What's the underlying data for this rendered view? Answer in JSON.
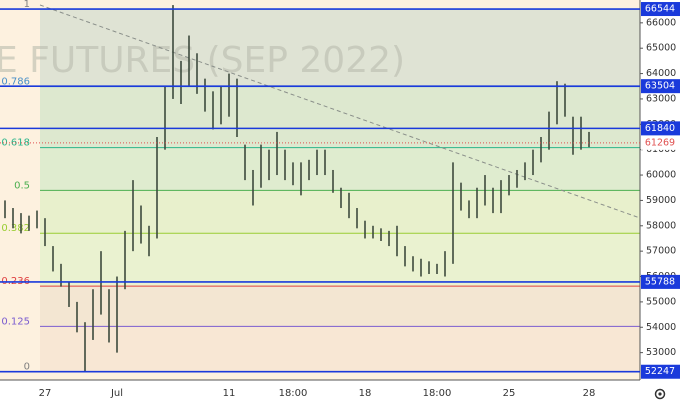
{
  "chart_data": {
    "type": "ohlc",
    "watermark": "E FUTURES (SEP 2022)",
    "categories": [
      null,
      null,
      null,
      null,
      null,
      "27",
      null,
      null,
      null,
      null,
      null,
      null,
      null,
      null,
      "Jul",
      null,
      null,
      null,
      null,
      null,
      null,
      null,
      null,
      null,
      null,
      null,
      null,
      null,
      "11",
      null,
      null,
      null,
      null,
      null,
      null,
      null,
      "18:00",
      null,
      null,
      null,
      null,
      null,
      null,
      null,
      null,
      "18",
      null,
      null,
      null,
      null,
      null,
      null,
      null,
      null,
      "18:00",
      null,
      null,
      null,
      null,
      null,
      null,
      null,
      null,
      "25",
      null,
      null,
      null,
      null,
      null,
      null,
      null,
      null,
      null,
      "28"
    ],
    "series": [
      {
        "color": "#3d4a3d",
        "high": [
          59000,
          58700,
          58500,
          58400,
          58600,
          58300,
          57200,
          56500,
          55800,
          55000,
          54200,
          55500,
          57000,
          55500,
          56000,
          57800,
          59800,
          58800,
          58000,
          61500,
          63500,
          66700,
          64500,
          65500,
          64800,
          63800,
          63300,
          63500,
          64000,
          63800,
          61200,
          60200,
          61200,
          61000,
          61700,
          61000,
          60500,
          60500,
          60600,
          61000,
          61000,
          60200,
          59500,
          59300,
          58700,
          58200,
          58000,
          57900,
          57800,
          58000,
          57200,
          56800,
          56700,
          56600,
          56500,
          57000,
          60500,
          59700,
          59000,
          59500,
          60000,
          59500,
          59800,
          60000,
          60200,
          60500,
          61000,
          61500,
          62500,
          63700,
          63600,
          62300,
          62300,
          61700
        ],
        "low": [
          58300,
          57900,
          57700,
          57800,
          57900,
          57200,
          56200,
          55600,
          54800,
          53800,
          52250,
          53500,
          54500,
          53400,
          53000,
          55500,
          57000,
          57300,
          56800,
          57500,
          61000,
          63000,
          62800,
          63500,
          63200,
          62500,
          61800,
          62000,
          62300,
          61500,
          59800,
          58800,
          59500,
          59800,
          60000,
          59800,
          59600,
          59200,
          59800,
          60000,
          60000,
          59300,
          58700,
          58300,
          57900,
          57500,
          57500,
          57400,
          57200,
          56800,
          56400,
          56200,
          56000,
          56100,
          56100,
          56000,
          56500,
          58600,
          58300,
          58300,
          58800,
          58500,
          58500,
          59200,
          59500,
          59800,
          60000,
          60500,
          61000,
          62000,
          62300,
          60800,
          61000,
          61100
        ]
      }
    ],
    "ylim": [
      52000,
      66900
    ],
    "yticks": [
      53000,
      54000,
      55000,
      56000,
      57000,
      58000,
      59000,
      60000,
      61000,
      62000,
      63000,
      64000,
      65000,
      66000
    ],
    "fib_levels": [
      {
        "ratio": 1,
        "price": 66544,
        "color": "#808080",
        "fill": "#dfe3d4"
      },
      {
        "ratio": 0.786,
        "price": 63485,
        "color": "#4a90c8",
        "fill": "#dde8cf"
      },
      {
        "ratio": 0.618,
        "price": 61083,
        "color": "#2bb58a",
        "fill": "#dfeccf"
      },
      {
        "ratio": 0.5,
        "price": 59395,
        "color": "#4caf50",
        "fill": "#e8f0cc"
      },
      {
        "ratio": 0.382,
        "price": 57708,
        "color": "#9acd32",
        "fill": "#eaf2d0"
      },
      {
        "ratio": 0.236,
        "price": 55621,
        "color": "#e04040",
        "fill": "#f3e6d2"
      },
      {
        "ratio": 0.125,
        "price": 54034,
        "color": "#7a5cd0",
        "fill": "#f8e7d4"
      },
      {
        "ratio": 0,
        "price": 52247,
        "color": "#808080",
        "fill": "#fbe9d4"
      }
    ],
    "price_lines": [
      66544,
      63504,
      61840,
      55788,
      52247
    ],
    "price_line_color": "#1a3adb",
    "last_price": 61269,
    "last_price_color": "#e05050"
  }
}
